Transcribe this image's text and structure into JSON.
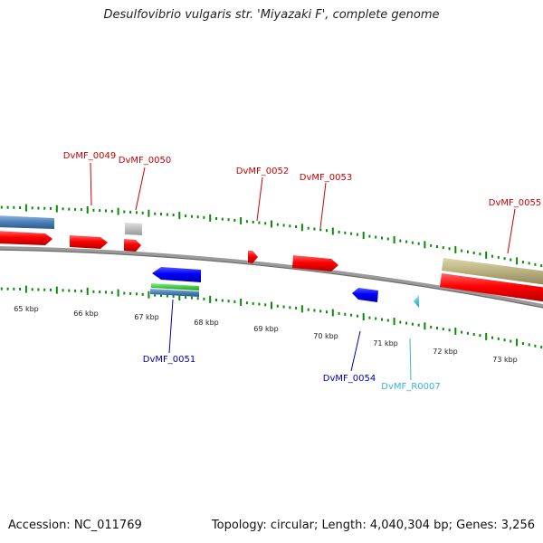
{
  "title": "Desulfovibrio vulgaris str. 'Miyazaki F', complete genome",
  "accession": "Accession: NC_011769",
  "stats": "Topology: circular; Length: 4,040,304 bp; Genes: 3,256",
  "colors": {
    "cds": "#ff0000",
    "cds_reverse": "#0000ff",
    "trna": "#33c6e6",
    "pseudo": "#b0b0b0",
    "ruler": "#0a8a0a",
    "backbone": "#8c8c8c",
    "misc_steel": "#4a7fb8",
    "misc_khaki": "#b8b07e",
    "misc_green": "#44cc44",
    "label_forward": "#cc0000",
    "label_reverse": "#0000aa",
    "label_trna": "#33b5d9"
  },
  "ticks": [
    "65 kbp",
    "66 kbp",
    "67 kbp",
    "68 kbp",
    "69 kbp",
    "70 kbp",
    "71 kbp",
    "72 kbp",
    "73 kbp"
  ],
  "labels": {
    "dvmf_0049": "DvMF_0049",
    "dvmf_0050": "DvMF_0050",
    "dvmf_0051": "DvMF_0051",
    "dvmf_0052": "DvMF_0052",
    "dvmf_0053": "DvMF_0053",
    "dvmf_0054": "DvMF_0054",
    "dvmf_0055": "DvMF_0055",
    "dvmf_r0007": "DvMF_R0007"
  }
}
